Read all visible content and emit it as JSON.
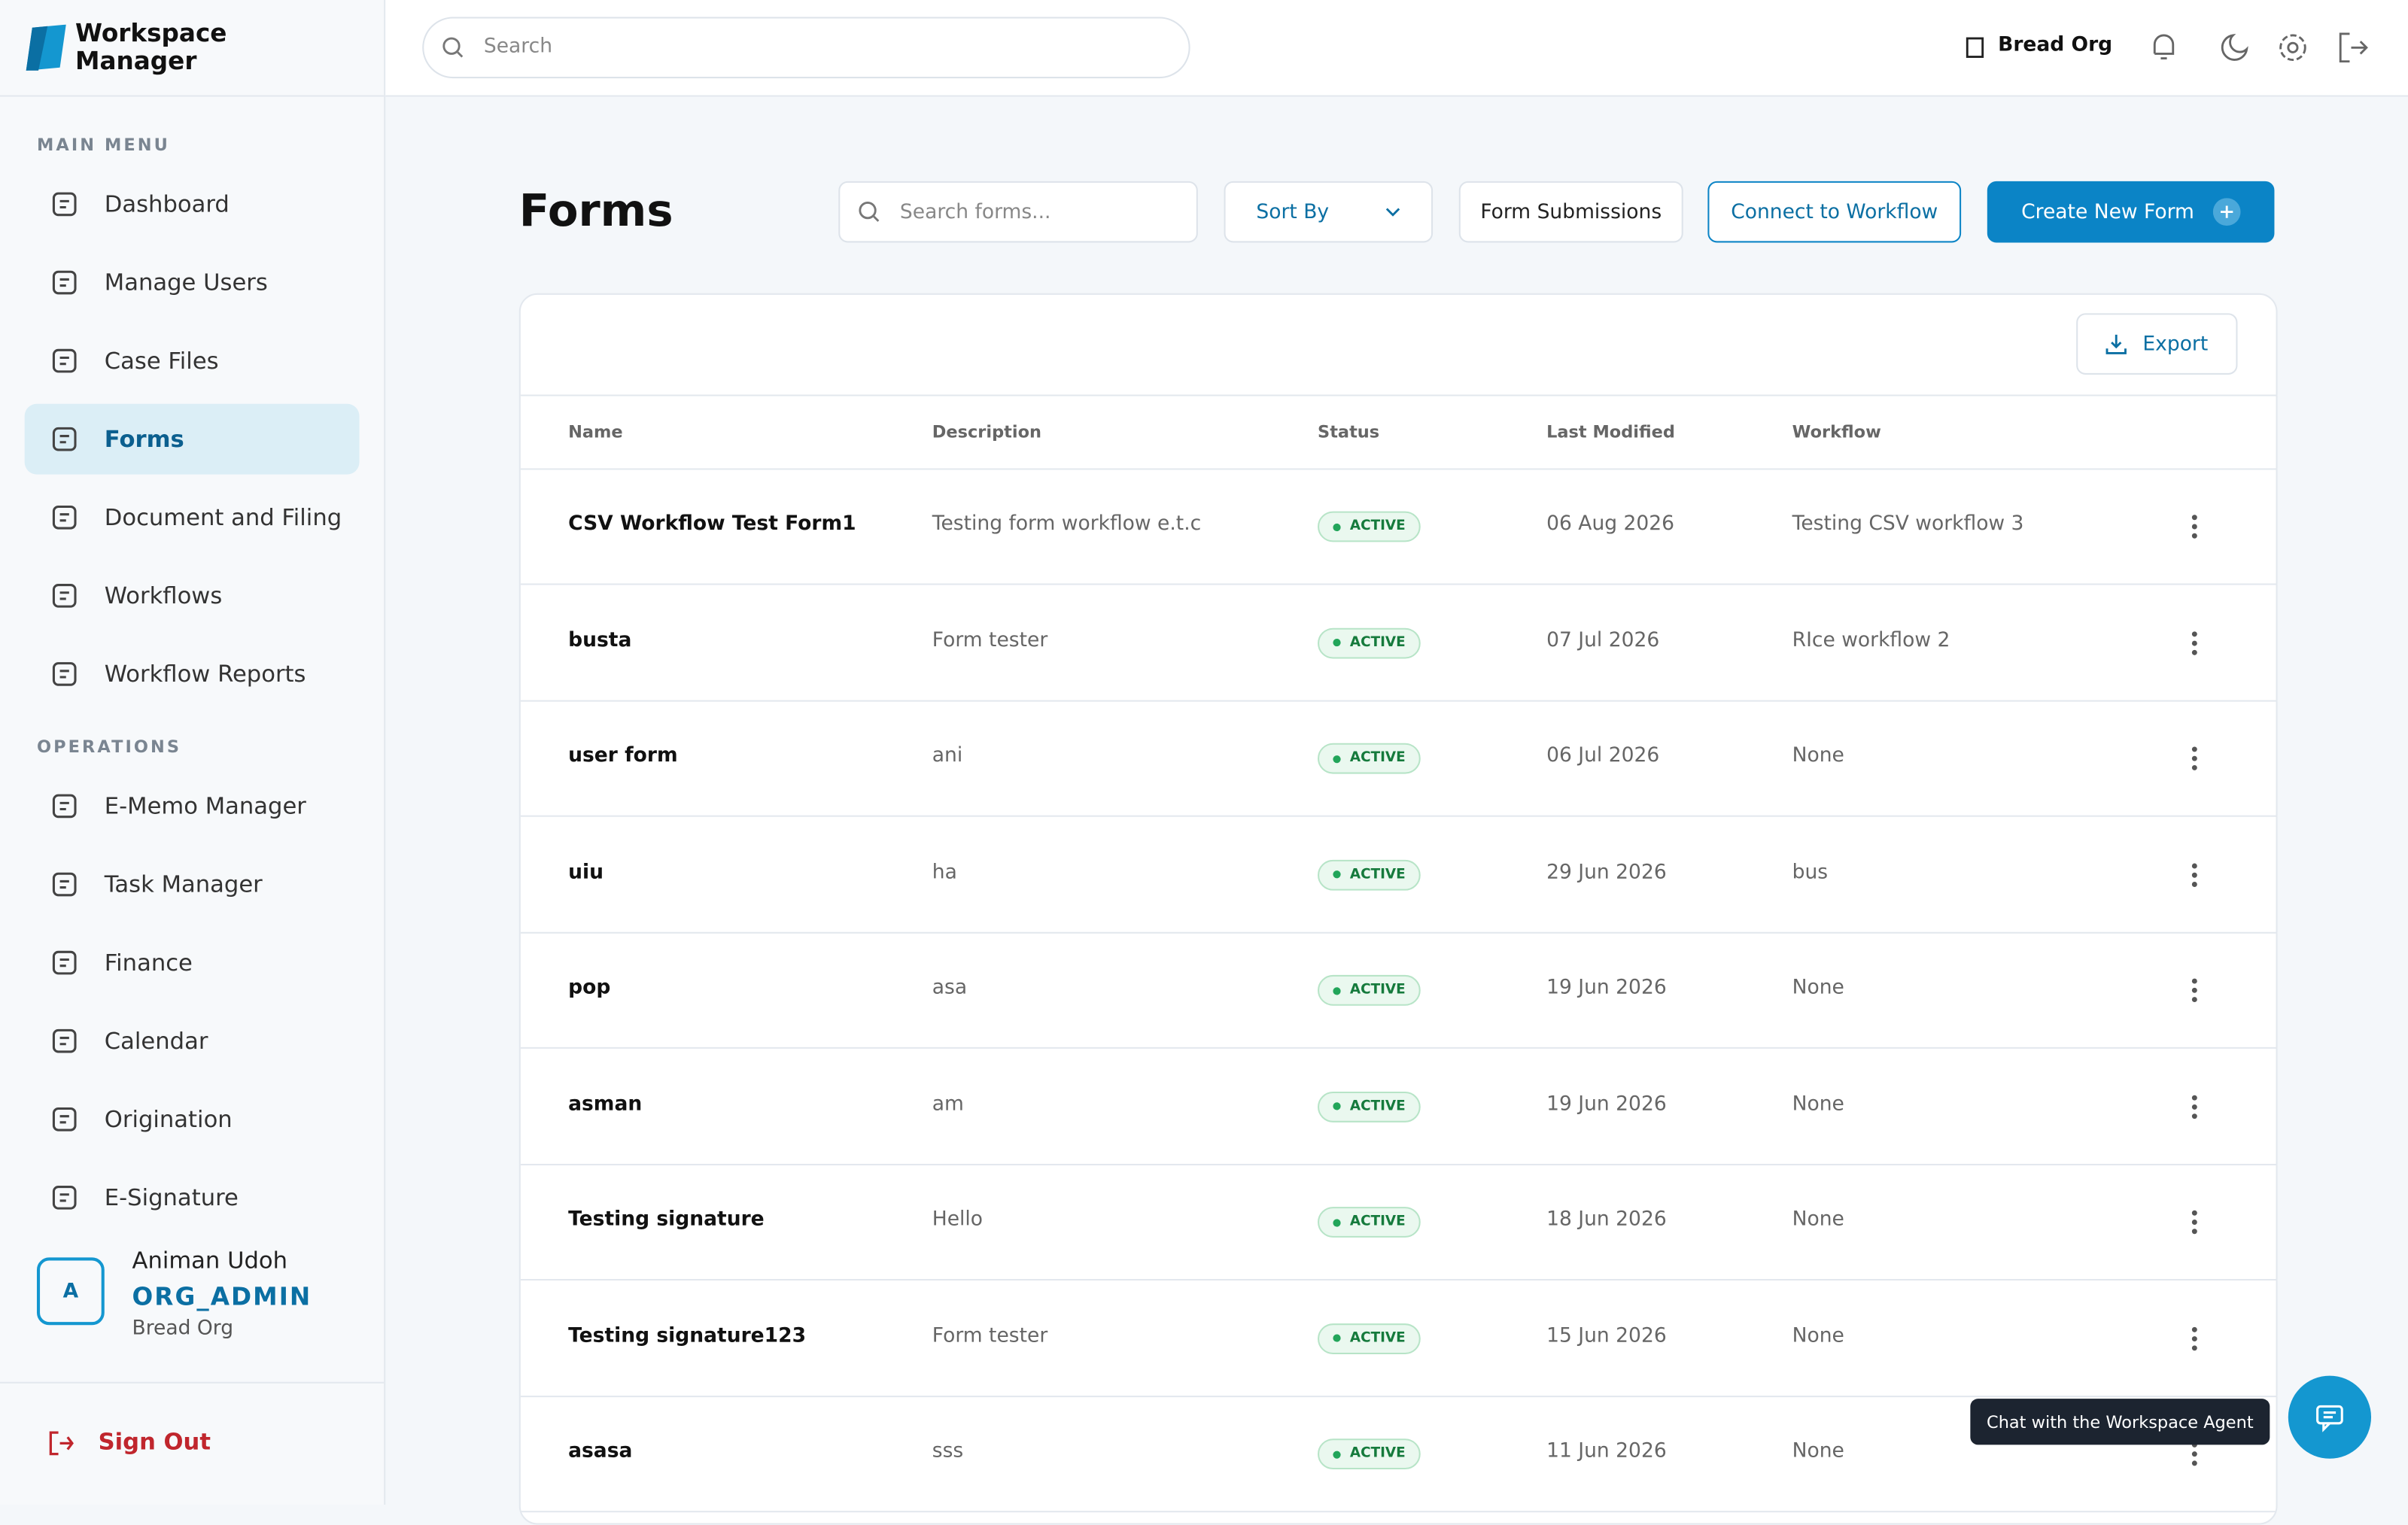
{
  "sidebar": {
    "brand": "Workspace Manager",
    "main_menu_label": "MAIN MENU",
    "main_menu": [
      "Dashboard",
      "Manage Users",
      "Case Files",
      "Forms",
      "Document and Filing",
      "Workflows",
      "Workflow Reports"
    ],
    "operations_label": "OPERATIONS",
    "operations": [
      "E-Memo Manager",
      "Task Manager",
      "Finance",
      "Calendar",
      "Origination",
      "E-Signature"
    ],
    "user": {
      "initial": "A",
      "name": "Animan Udoh",
      "role": "ORG_ADMIN",
      "org": "Bread Org"
    },
    "sign_out": "Sign Out"
  },
  "topbar": {
    "search_placeholder": "Search",
    "org": "Bread Org"
  },
  "page": {
    "title": "Forms",
    "search_placeholder": "Search forms...",
    "sort": "Sort By",
    "form_submissions": "Form Submissions",
    "connect": "Connect to Workflow",
    "create": "Create New Form",
    "export": "Export"
  },
  "table": {
    "columns": [
      "Name",
      "Description",
      "Status",
      "Last Modified",
      "Workflow"
    ],
    "rows": [
      [
        "CSV Workflow Test Form1",
        "Testing form workflow e.t.c",
        "ACTIVE",
        "06 Aug 2026",
        "Testing CSV workflow 3"
      ],
      [
        "busta",
        "Form tester",
        "ACTIVE",
        "07 Jul 2026",
        "RIce workflow 2"
      ],
      [
        "user form",
        "ani",
        "ACTIVE",
        "06 Jul 2026",
        "None"
      ],
      [
        "uiu",
        "ha",
        "ACTIVE",
        "29 Jun 2026",
        "bus"
      ],
      [
        "pop",
        "asa",
        "ACTIVE",
        "19 Jun 2026",
        "None"
      ],
      [
        "asman",
        "am",
        "ACTIVE",
        "19 Jun 2026",
        "None"
      ],
      [
        "Testing signature",
        "Hello",
        "ACTIVE",
        "18 Jun 2026",
        "None"
      ],
      [
        "Testing signature123",
        "Form tester",
        "ACTIVE",
        "15 Jun 2026",
        "None"
      ],
      [
        "asasa",
        "sss",
        "ACTIVE",
        "11 Jun 2026",
        "None"
      ]
    ]
  },
  "chat_tooltip": "Chat with the Workspace Agent"
}
